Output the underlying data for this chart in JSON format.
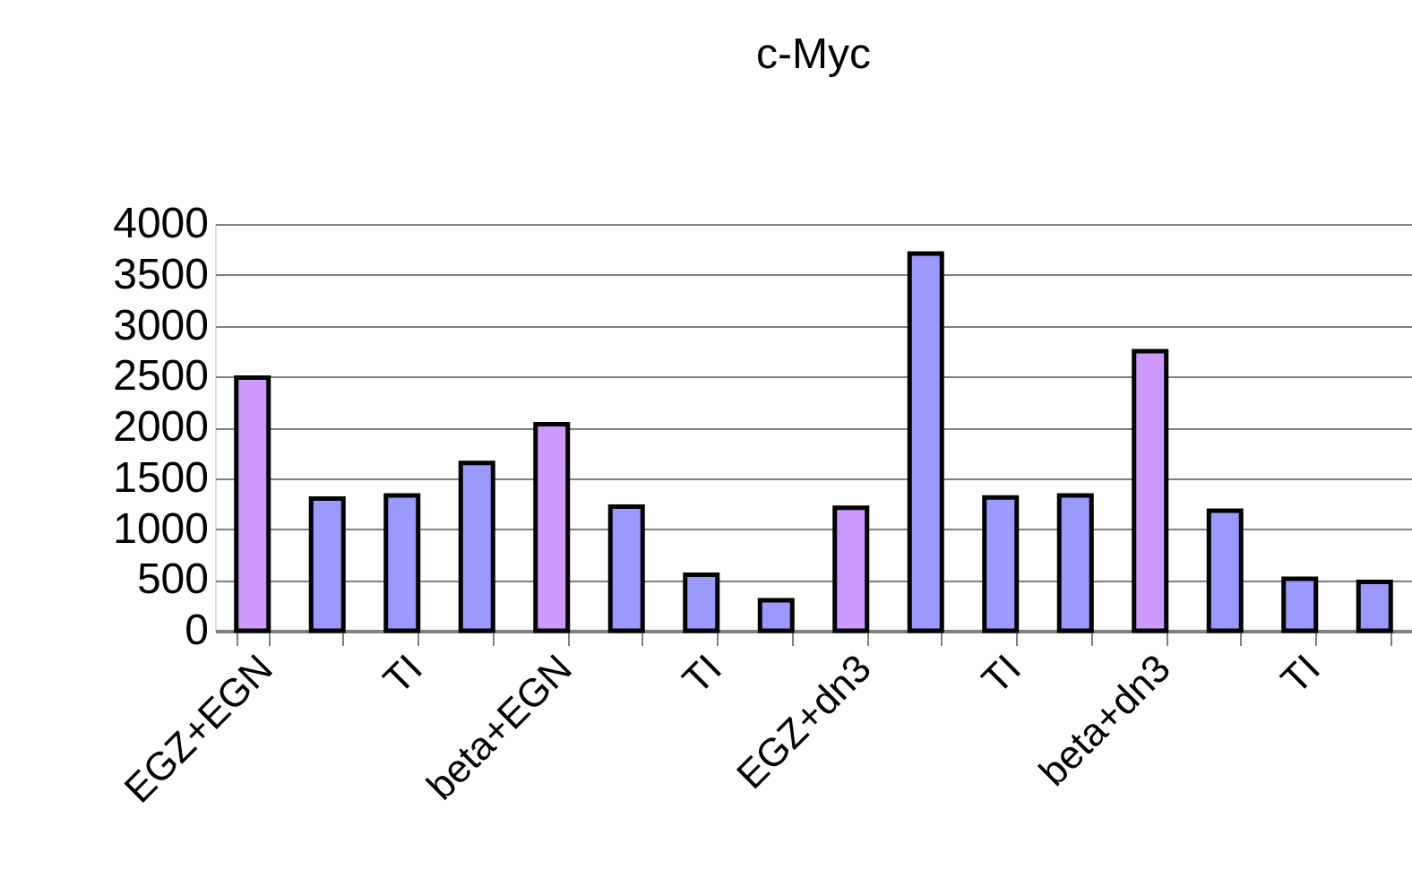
{
  "chart_data": {
    "type": "bar",
    "title": "c-Myc",
    "categories": [
      "EGZ+EGN",
      null,
      "TI",
      null,
      "beta+EGN",
      null,
      "TI",
      null,
      "EGZ+dn3",
      null,
      "TI",
      null,
      "beta+dn3",
      null,
      "TI",
      null
    ],
    "values": [
      2490,
      1300,
      1330,
      1650,
      2030,
      1220,
      550,
      300,
      1210,
      3710,
      1310,
      1330,
      2750,
      1180,
      510,
      480
    ],
    "colors": [
      "#cc99ff",
      "#9999ff",
      "#9999ff",
      "#9999ff",
      "#cc99ff",
      "#9999ff",
      "#9999ff",
      "#9999ff",
      "#cc99ff",
      "#9999ff",
      "#9999ff",
      "#9999ff",
      "#cc99ff",
      "#9999ff",
      "#9999ff",
      "#9999ff"
    ],
    "ylim": [
      0,
      4000
    ],
    "yticks": [
      0,
      500,
      1000,
      1500,
      2000,
      2500,
      3000,
      3500,
      4000
    ],
    "grid": "y"
  }
}
